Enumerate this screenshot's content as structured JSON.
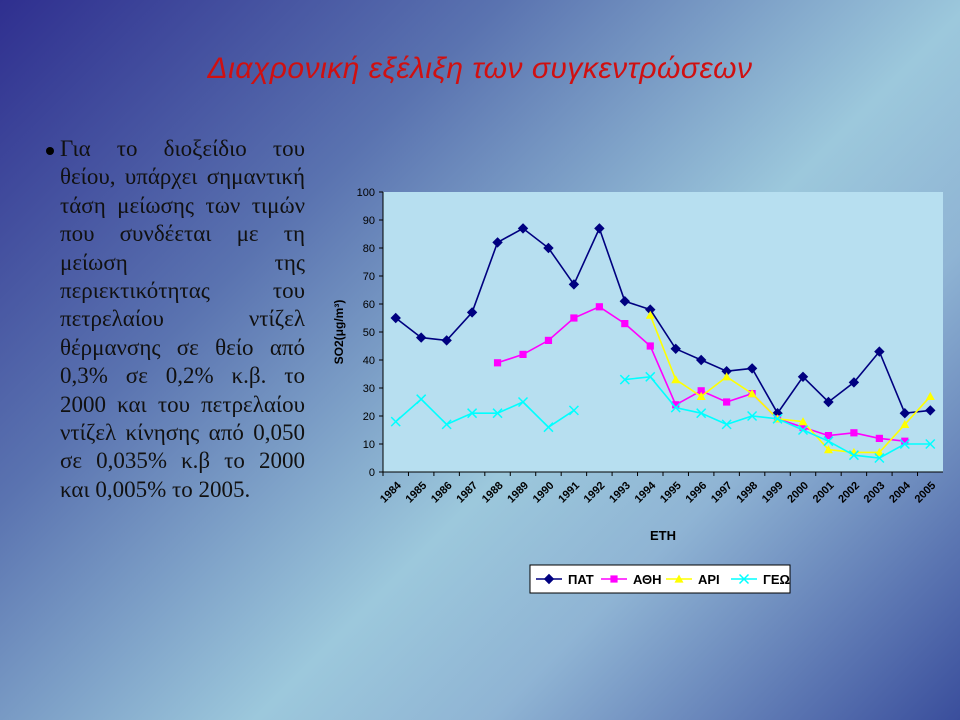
{
  "slide": {
    "title": "Διαχρονική εξέλιξη των συγκεντρώσεων",
    "bullet": "Για το διοξείδιο του θείου, υπάρχει σημαντική τάση μείωσης των τιμών που συνδέεται με τη μείωση της περιεκτικότητας του πετρελαίου ντίζελ θέρμανσης σε θείο από 0,3% σε 0,2% κ.β. το 2000 και του πετρελαίου ντίζελ κίνησης από 0,050 σε 0,035% κ.β το 2000 και 0,005% το 2005."
  },
  "chart_data": {
    "type": "line",
    "title": "",
    "xlabel": "ΕΤΗ",
    "ylabel": "SO2(μg/m³)",
    "ylim": [
      0,
      100
    ],
    "yticks": [
      0,
      10,
      20,
      30,
      40,
      50,
      60,
      70,
      80,
      90,
      100
    ],
    "categories": [
      "1984",
      "1985",
      "1986",
      "1987",
      "1988",
      "1989",
      "1990",
      "1991",
      "1992",
      "1993",
      "1994",
      "1995",
      "1996",
      "1997",
      "1998",
      "1999",
      "2000",
      "2001",
      "2002",
      "2003",
      "2004",
      "2005"
    ],
    "legend_position": "bottom",
    "grid": false,
    "series": [
      {
        "name": "ΠΑΤ",
        "color": "#000080",
        "marker": "diamond",
        "values": [
          55,
          48,
          47,
          57,
          82,
          87,
          80,
          67,
          87,
          61,
          58,
          44,
          40,
          36,
          37,
          21,
          34,
          25,
          32,
          43,
          21,
          22
        ]
      },
      {
        "name": "ΑΘΗ",
        "color": "#ff00ff",
        "marker": "square",
        "values": [
          null,
          null,
          null,
          null,
          39,
          42,
          47,
          55,
          59,
          53,
          45,
          24,
          29,
          25,
          28,
          19,
          16,
          13,
          14,
          12,
          11,
          null
        ]
      },
      {
        "name": "ΑΡΙ",
        "color": "#ffff00",
        "marker": "triangle",
        "values": [
          null,
          null,
          null,
          null,
          null,
          null,
          null,
          null,
          null,
          null,
          56,
          33,
          27,
          34,
          28,
          19,
          18,
          8,
          7,
          7,
          17,
          27
        ]
      },
      {
        "name": "ΓΕΩ",
        "color": "#00ffff",
        "marker": "x",
        "values": [
          18,
          26,
          17,
          21,
          21,
          25,
          16,
          22,
          null,
          33,
          34,
          23,
          21,
          17,
          20,
          19,
          15,
          11,
          6,
          5,
          10,
          10
        ]
      }
    ]
  }
}
